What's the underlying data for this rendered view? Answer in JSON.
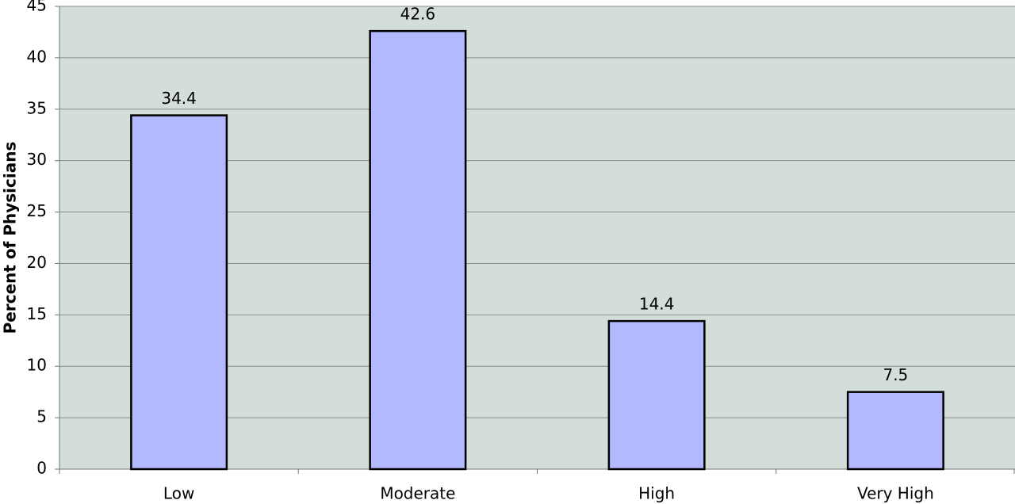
{
  "chart_data": {
    "type": "bar",
    "y_label": "Percent of Physicians",
    "categories": [
      "Low",
      "Moderate",
      "High",
      "Very High"
    ],
    "values": [
      34.4,
      42.6,
      14.4,
      7.5
    ],
    "color": "#b3b9ff",
    "ylim": [
      0,
      45
    ],
    "yticks": [
      0,
      5,
      10,
      15,
      20,
      25,
      30,
      35,
      40,
      45
    ],
    "grid": true
  }
}
